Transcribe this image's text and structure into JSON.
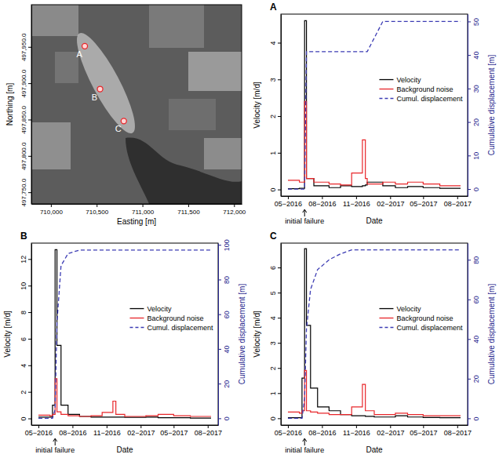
{
  "chart_data": [
    {
      "type": "scatter",
      "x_label": "Easting [m]",
      "y_label": "Northing [m]",
      "x": [
        710370,
        710537,
        710796
      ],
      "values": [
        497951,
        497892,
        497848
      ],
      "point_labels": [
        "A",
        "B",
        "C"
      ],
      "color": "#e8262a",
      "marker": "circle",
      "xlim": [
        709787,
        712083
      ],
      "ylim": [
        497734,
        498008
      ],
      "xticks": [
        {
          "value": 710000,
          "label": "710,000"
        },
        {
          "value": 710500,
          "label": "710,500"
        },
        {
          "value": 711000,
          "label": "711,000"
        },
        {
          "value": 711500,
          "label": "711,500"
        },
        {
          "value": 712000,
          "label": "712,000"
        }
      ],
      "yticks": [
        {
          "value": 497750,
          "label": "497,750.0"
        },
        {
          "value": 497800,
          "label": "497,800.0"
        },
        {
          "value": 497850,
          "label": "497,850.0"
        },
        {
          "value": 497900,
          "label": "497,900.0"
        },
        {
          "value": 497950,
          "label": "497,950.0"
        }
      ]
    },
    {
      "type": "line",
      "title": "A",
      "x_label": "Date",
      "y_label": "Velocity [m/d]",
      "y2_label": "Cumulative displacement [m]",
      "annotations": [
        {
          "text": "initial failure",
          "x": "2016-06-15"
        }
      ],
      "legend": "right",
      "x": [
        "2016-05-01",
        "2016-06-01",
        "2016-06-15",
        "2016-06-20",
        "2016-07-10",
        "2016-08-20",
        "2016-09-20",
        "2016-10-20",
        "2016-11-18",
        "2016-11-26",
        "2016-12-01",
        "2017-01-12",
        "2017-02-15",
        "2017-03-20",
        "2017-05-01",
        "2017-06-15",
        "2017-08-10"
      ],
      "series": [
        {
          "name": "Velocity",
          "color": "#000000",
          "type": "step",
          "values": [
            0.02,
            0.03,
            4.6,
            0.3,
            0.1,
            0.05,
            0.1,
            0.08,
            0.1,
            0.12,
            0.2,
            0.1,
            0.05,
            0.08,
            0.05,
            0.03,
            0.03
          ]
        },
        {
          "name": "Background noise",
          "color": "#e8262a",
          "type": "step",
          "values": [
            0.25,
            0.2,
            2.4,
            0.3,
            0.2,
            0.15,
            0.12,
            0.45,
            1.35,
            0.3,
            0.15,
            0.2,
            0.15,
            0.2,
            0.15,
            0.1,
            0.1
          ]
        },
        {
          "name": "Cumul. displacement",
          "color": "#3c3cb4",
          "type": "line",
          "line_style": "dashed",
          "axis": "y2",
          "values": [
            0,
            0,
            0,
            41,
            41,
            41,
            41,
            41,
            41,
            41,
            41,
            50,
            50,
            50,
            50,
            50,
            50
          ]
        }
      ],
      "xlim": [
        "2016-04-12",
        "2017-08-29"
      ],
      "xticks": [
        {
          "value": "2016-05-01",
          "label": "05−2016"
        },
        {
          "value": "2016-08-01",
          "label": "08−2016"
        },
        {
          "value": "2016-11-01",
          "label": "11−2016"
        },
        {
          "value": "2017-02-01",
          "label": "02−2017"
        },
        {
          "value": "2017-05-01",
          "label": "05−2017"
        },
        {
          "value": "2017-08-01",
          "label": "08−2017"
        }
      ],
      "ylim": [
        -0.18,
        4.78
      ],
      "yticks": [
        0,
        1,
        2,
        3,
        4
      ],
      "y2lim": [
        -2.1,
        52.2
      ],
      "y2ticks": [
        0,
        10,
        20,
        30,
        40,
        50
      ]
    },
    {
      "type": "line",
      "title": "B",
      "x_label": "Date",
      "y_label": "Velocity [m/d]",
      "y2_label": "Cumulative displacement [m]",
      "annotations": [
        {
          "text": "initial failure",
          "x": "2016-06-15"
        }
      ],
      "legend": "right",
      "x": [
        "2016-05-01",
        "2016-06-01",
        "2016-06-08",
        "2016-06-15",
        "2016-06-20",
        "2016-07-01",
        "2016-07-20",
        "2016-08-20",
        "2016-09-20",
        "2016-10-20",
        "2016-11-18",
        "2016-11-26",
        "2016-12-20",
        "2017-02-15",
        "2017-03-20",
        "2017-05-01",
        "2017-06-15",
        "2017-08-10"
      ],
      "series": [
        {
          "name": "Velocity",
          "color": "#000000",
          "type": "step",
          "values": [
            0.1,
            0.1,
            1.0,
            12.7,
            5.5,
            1.0,
            0.3,
            0.15,
            0.1,
            0.1,
            0.1,
            0.1,
            0.08,
            0.1,
            0.05,
            0.05,
            0.03,
            0.03
          ]
        },
        {
          "name": "Background noise",
          "color": "#e8262a",
          "type": "step",
          "values": [
            0.25,
            0.2,
            0.3,
            3.0,
            0.5,
            0.3,
            0.2,
            0.15,
            0.2,
            0.45,
            1.3,
            0.3,
            0.15,
            0.2,
            0.3,
            0.2,
            0.15,
            0.15
          ]
        },
        {
          "name": "Cumul. displacement",
          "color": "#3c3cb4",
          "type": "line",
          "line_style": "dashed",
          "axis": "y2",
          "values": [
            0,
            0,
            0,
            5,
            55,
            88,
            95,
            97,
            97,
            97,
            97,
            97,
            97,
            97,
            97,
            97,
            97,
            97
          ]
        }
      ],
      "xlim": [
        "2016-04-12",
        "2017-08-29"
      ],
      "xticks": [
        {
          "value": "2016-05-01",
          "label": "05−2016"
        },
        {
          "value": "2016-08-01",
          "label": "08−2016"
        },
        {
          "value": "2016-11-01",
          "label": "11−2016"
        },
        {
          "value": "2017-02-01",
          "label": "02−2017"
        },
        {
          "value": "2017-05-01",
          "label": "05−2017"
        },
        {
          "value": "2017-08-01",
          "label": "08−2017"
        }
      ],
      "ylim": [
        -0.5,
        13.2
      ],
      "yticks": [
        0,
        2,
        4,
        6,
        8,
        10,
        12
      ],
      "y2lim": [
        -3.9,
        101
      ],
      "y2ticks": [
        0,
        20,
        40,
        60,
        80,
        100
      ]
    },
    {
      "type": "line",
      "title": "C",
      "x_label": "Date",
      "y_label": "Velocity [m/d]",
      "y2_label": "Cumulative displacement [m]",
      "annotations": [
        {
          "text": "initial failure",
          "x": "2016-06-15"
        }
      ],
      "legend": "right",
      "x": [
        "2016-05-01",
        "2016-06-01",
        "2016-06-08",
        "2016-06-15",
        "2016-06-20",
        "2016-07-01",
        "2016-07-20",
        "2016-08-20",
        "2016-09-20",
        "2016-10-20",
        "2016-11-18",
        "2016-11-26",
        "2016-12-20",
        "2017-02-15",
        "2017-03-20",
        "2017-05-01",
        "2017-06-15",
        "2017-08-10"
      ],
      "series": [
        {
          "name": "Velocity",
          "color": "#000000",
          "type": "step",
          "values": [
            0.02,
            0.02,
            1.6,
            6.75,
            3.7,
            1.2,
            0.45,
            0.3,
            0.15,
            0.1,
            0.1,
            0.08,
            0.05,
            0.1,
            0.05,
            0.03,
            0.02,
            0.02
          ]
        },
        {
          "name": "Background noise",
          "color": "#e8262a",
          "type": "step",
          "values": [
            0.25,
            0.2,
            0.3,
            1.9,
            0.3,
            0.25,
            0.2,
            0.15,
            0.15,
            0.45,
            1.35,
            0.3,
            0.15,
            0.2,
            0.15,
            0.1,
            0.1,
            0.1
          ]
        },
        {
          "name": "Cumul. displacement",
          "color": "#3c3cb4",
          "type": "line",
          "line_style": "dashed",
          "axis": "y2",
          "values": [
            0,
            0,
            0,
            10,
            45,
            65,
            75,
            80,
            83,
            85,
            85,
            85,
            85,
            85,
            85,
            85,
            85,
            85
          ]
        }
      ],
      "xlim": [
        "2016-04-12",
        "2017-08-29"
      ],
      "xticks": [
        {
          "value": "2016-05-01",
          "label": "05−2016"
        },
        {
          "value": "2016-08-01",
          "label": "08−2016"
        },
        {
          "value": "2016-11-01",
          "label": "11−2016"
        },
        {
          "value": "2017-02-01",
          "label": "02−2017"
        },
        {
          "value": "2017-05-01",
          "label": "05−2017"
        },
        {
          "value": "2017-08-01",
          "label": "08−2017"
        }
      ],
      "ylim": [
        -0.27,
        6.97
      ],
      "yticks": [
        0,
        1,
        2,
        3,
        4,
        5,
        6
      ],
      "y2lim": [
        -3.4,
        88.4
      ],
      "y2ticks": [
        0,
        20,
        40,
        60,
        80
      ]
    }
  ]
}
